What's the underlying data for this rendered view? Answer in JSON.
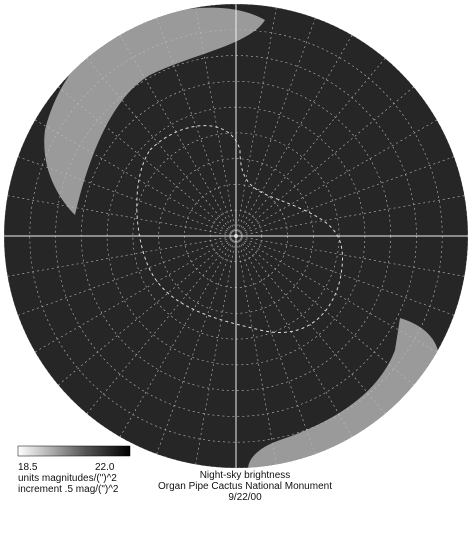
{
  "legend": {
    "min_label": "18.5",
    "max_label": "22.0",
    "units": "units magnitudes/(\")^2",
    "increment": "increment .5 mag/(\")^2"
  },
  "caption": {
    "title": "Night-sky brightness",
    "location": "Organ Pipe Cactus National Monument",
    "date": "9/22/00"
  }
}
